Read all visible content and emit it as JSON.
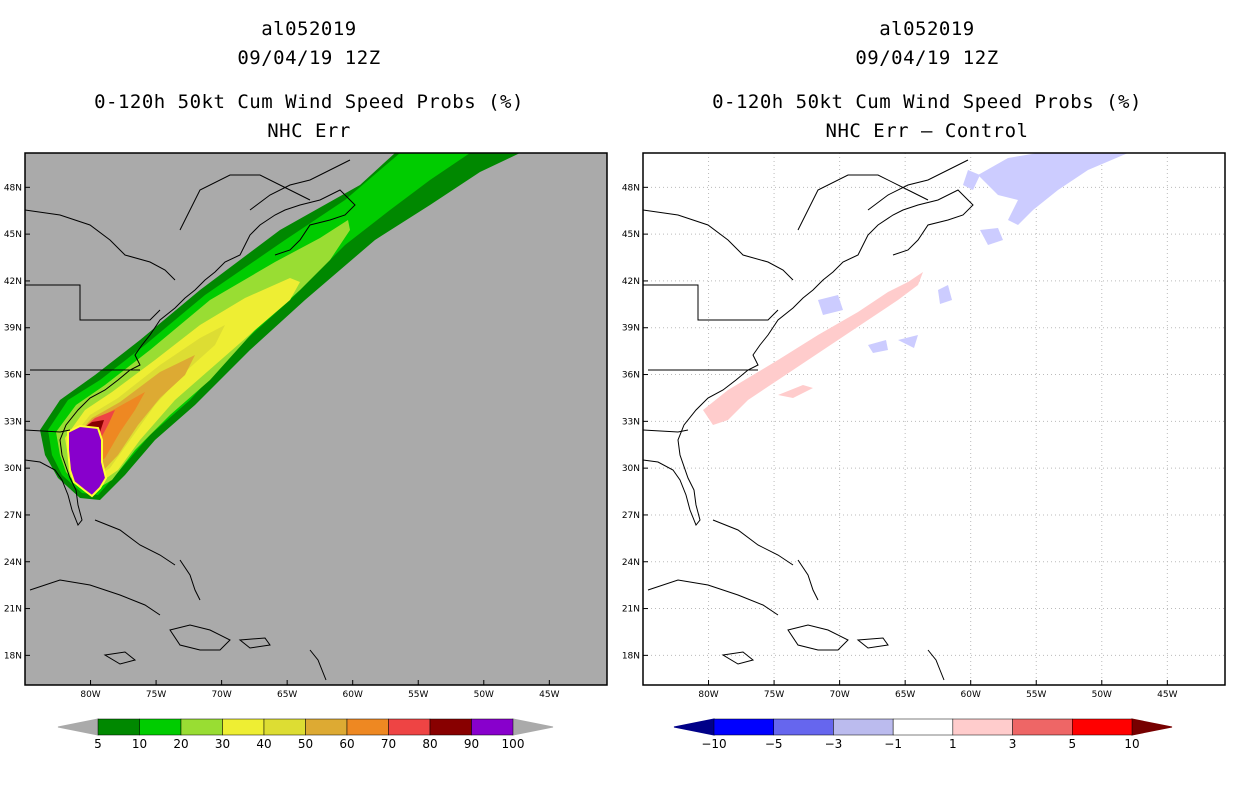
{
  "left_panel": {
    "title_storm": "al052019",
    "title_time": "09/04/19 12Z",
    "title_product": "0-120h 50kt Cum Wind Speed Probs (%)",
    "title_variant": "NHC Err",
    "colorbar": {
      "labels": [
        "5",
        "10",
        "20",
        "30",
        "40",
        "50",
        "60",
        "70",
        "80",
        "90",
        "100"
      ],
      "colors": [
        "#008800",
        "#00cc00",
        "#99dd33",
        "#eeee33",
        "#dddd33",
        "#ddaa33",
        "#ee8822",
        "#ee4444",
        "#880000",
        "#8800cc"
      ],
      "underflow_color": "#aaaaaa",
      "overflow_color": "#aaaaaa"
    },
    "background_color": "#aaaaaa"
  },
  "right_panel": {
    "title_storm": "al052019",
    "title_time": "09/04/19 12Z",
    "title_product": "0-120h 50kt Cum Wind Speed Probs (%)",
    "title_variant": "NHC Err – Control",
    "colorbar": {
      "labels": [
        "−10",
        "−5",
        "−3",
        "−1",
        "1",
        "3",
        "5",
        "10"
      ],
      "colors": [
        "#0000ff",
        "#6666ee",
        "#bbbbee",
        "#ffffff",
        "#ffcccc",
        "#ee6666",
        "#ff0000"
      ],
      "underflow_color": "#000088",
      "overflow_color": "#770000"
    },
    "background_color": "#ffffff"
  },
  "map_axes": {
    "lon_labels": [
      "80W",
      "75W",
      "70W",
      "65W",
      "60W",
      "55W",
      "50W",
      "45W"
    ],
    "lat_labels": [
      "48N",
      "45N",
      "42N",
      "39N",
      "36N",
      "33N",
      "30N",
      "27N",
      "24N",
      "21N",
      "18N"
    ],
    "lon_values": [
      -80,
      -75,
      -70,
      -65,
      -60,
      -55,
      -50,
      -45
    ],
    "lat_values": [
      48,
      45,
      42,
      39,
      36,
      33,
      30,
      27,
      24,
      21,
      18
    ],
    "lon_range": [
      -85,
      -40.6
    ],
    "lat_range": [
      16.1,
      50.2
    ]
  }
}
